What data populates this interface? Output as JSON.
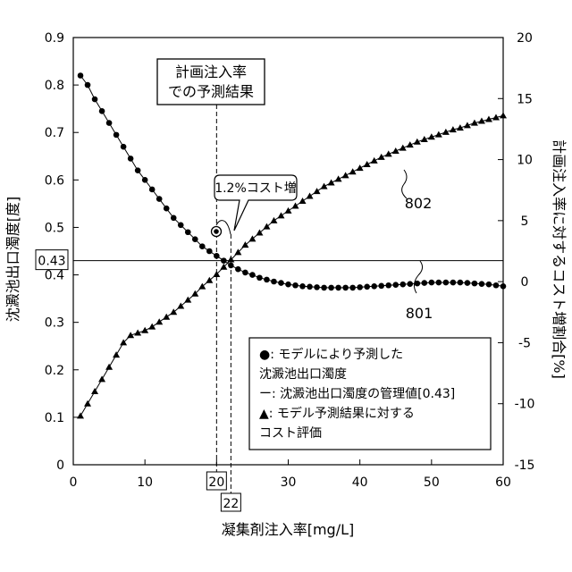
{
  "chart_data": {
    "type": "scatter",
    "x_axis": {
      "label": "凝集剤注入率[mg/L]",
      "range": [
        0,
        60
      ],
      "ticks": [
        0,
        10,
        20,
        30,
        40,
        50,
        60
      ]
    },
    "y_left": {
      "label": "沈澱池出口濁度[度]",
      "range": [
        0,
        0.9
      ],
      "ticks": [
        0,
        0.1,
        0.2,
        0.3,
        0.4,
        0.5,
        0.6,
        0.7,
        0.8,
        0.9
      ]
    },
    "y_right": {
      "label": "計画注入率に対するコスト増割合[%]",
      "range": [
        -15,
        20
      ],
      "ticks": [
        -15,
        -10,
        -5,
        0,
        5,
        10,
        15,
        20
      ]
    },
    "reference_line": {
      "value": 0.43,
      "label": "0.43"
    },
    "markers": [
      {
        "x": 20,
        "label": "20"
      },
      {
        "x": 22,
        "label": "22"
      }
    ],
    "annotations": {
      "plan_box": [
        "計画注入率",
        "での予測結果"
      ],
      "cost_increase": "1.2%コスト増",
      "series_801": "801",
      "series_802": "802"
    },
    "legend": {
      "placement": "bottom-right",
      "lines": [
        "●: モデルにより予測した",
        "沈澱池出口濁度",
        "ー: 沈澱池出口濁度の管理値[0.43]",
        "▲: モデル予測結果に対する",
        "コスト評価"
      ]
    },
    "series": [
      {
        "marker": "circle",
        "axis": "left",
        "x": [
          1,
          2,
          3,
          4,
          5,
          6,
          7,
          8,
          9,
          10,
          11,
          12,
          13,
          14,
          15,
          16,
          17,
          18,
          19,
          20,
          21,
          22,
          23,
          24,
          25,
          26,
          27,
          28,
          29,
          30,
          31,
          32,
          33,
          34,
          35,
          36,
          37,
          38,
          39,
          40,
          41,
          42,
          43,
          44,
          45,
          46,
          47,
          48,
          49,
          50,
          51,
          52,
          53,
          54,
          55,
          56,
          57,
          58,
          59,
          60
        ],
        "values": [
          0.82,
          0.8,
          0.77,
          0.745,
          0.72,
          0.695,
          0.67,
          0.645,
          0.62,
          0.6,
          0.58,
          0.56,
          0.54,
          0.52,
          0.505,
          0.49,
          0.475,
          0.46,
          0.45,
          0.44,
          0.43,
          0.42,
          0.412,
          0.405,
          0.4,
          0.394,
          0.39,
          0.386,
          0.383,
          0.38,
          0.378,
          0.376,
          0.375,
          0.374,
          0.373,
          0.373,
          0.373,
          0.373,
          0.373,
          0.374,
          0.375,
          0.376,
          0.377,
          0.378,
          0.379,
          0.38,
          0.381,
          0.382,
          0.383,
          0.384,
          0.384,
          0.384,
          0.384,
          0.384,
          0.383,
          0.382,
          0.381,
          0.38,
          0.378,
          0.376
        ]
      },
      {
        "marker": "triangle",
        "axis": "right",
        "x": [
          1,
          2,
          3,
          4,
          5,
          6,
          7,
          8,
          9,
          10,
          11,
          12,
          13,
          14,
          15,
          16,
          17,
          18,
          19,
          20,
          21,
          22,
          23,
          24,
          25,
          26,
          27,
          28,
          29,
          30,
          31,
          32,
          33,
          34,
          35,
          36,
          37,
          38,
          39,
          40,
          41,
          42,
          43,
          44,
          45,
          46,
          47,
          48,
          49,
          50,
          51,
          52,
          53,
          54,
          55,
          56,
          57,
          58,
          59,
          60
        ],
        "values": [
          -11,
          -10,
          -9,
          -8,
          -7,
          -6,
          -5,
          -4.4,
          -4.2,
          -4.0,
          -3.7,
          -3.3,
          -2.9,
          -2.5,
          -2.0,
          -1.5,
          -1.0,
          -0.4,
          0.1,
          0.6,
          1.2,
          1.8,
          2.4,
          3.0,
          3.5,
          4.0,
          4.5,
          5.0,
          5.4,
          5.8,
          6.2,
          6.6,
          7.0,
          7.4,
          7.8,
          8.1,
          8.4,
          8.7,
          9.0,
          9.3,
          9.6,
          9.9,
          10.2,
          10.45,
          10.7,
          10.95,
          11.2,
          11.45,
          11.65,
          11.85,
          12.05,
          12.25,
          12.45,
          12.6,
          12.8,
          13.0,
          13.15,
          13.3,
          13.45,
          13.6
        ]
      }
    ]
  }
}
